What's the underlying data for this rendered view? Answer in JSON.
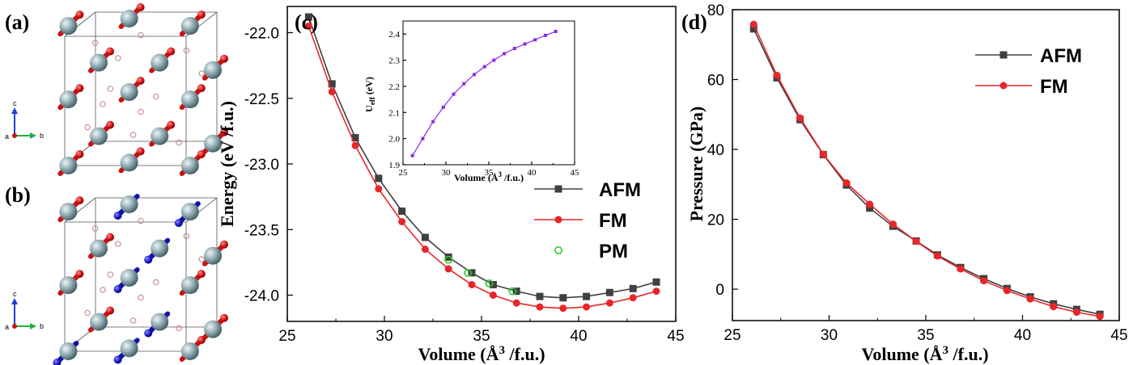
{
  "panels": {
    "a": "(a)",
    "b": "(b)",
    "c": "(c)",
    "d": "(d)"
  },
  "crystal_axes": {
    "a": "a",
    "b": "b",
    "c": "c"
  },
  "colors": {
    "afm": "#404040",
    "fm": "#e8262a",
    "pm": "#22cc22",
    "ueff": "#8a2be2",
    "atom_big": "#8fa9b0",
    "spin_up": "#cc1010",
    "spin_down": "#1010aa",
    "small_atom": "#c89090"
  },
  "chart_data": [
    {
      "id": "energy",
      "type": "line",
      "xlabel": "Volume (Å3 /f.u.)",
      "ylabel": "Energy (eV /f.u.)",
      "xlim": [
        25,
        45
      ],
      "ylim": [
        -24.2,
        -21.8
      ],
      "xticks": [
        25,
        30,
        35,
        40,
        45
      ],
      "yticks": [
        -22.0,
        -22.5,
        -23.0,
        -23.5,
        -24.0
      ],
      "yticklabels": [
        "-22.0",
        "-22.5",
        "-23.0",
        "-23.5",
        "-24.0"
      ],
      "legend_position": "right",
      "series": [
        {
          "name": "AFM",
          "marker": "square",
          "x": [
            26.1,
            27.3,
            28.5,
            29.7,
            30.9,
            32.1,
            33.3,
            34.5,
            35.6,
            36.8,
            38.0,
            39.2,
            40.4,
            41.6,
            42.8,
            44.0
          ],
          "y": [
            -21.88,
            -22.39,
            -22.8,
            -23.11,
            -23.36,
            -23.56,
            -23.71,
            -23.83,
            -23.92,
            -23.97,
            -24.01,
            -24.02,
            -24.01,
            -23.98,
            -23.95,
            -23.9
          ]
        },
        {
          "name": "FM",
          "marker": "circle",
          "x": [
            26.1,
            27.3,
            28.5,
            29.7,
            30.9,
            32.1,
            33.3,
            34.5,
            35.6,
            36.8,
            38.0,
            39.2,
            40.4,
            41.6,
            42.8,
            44.0
          ],
          "y": [
            -21.95,
            -22.45,
            -22.86,
            -23.19,
            -23.44,
            -23.65,
            -23.8,
            -23.92,
            -24.0,
            -24.06,
            -24.09,
            -24.1,
            -24.09,
            -24.06,
            -24.02,
            -23.97
          ]
        },
        {
          "name": "PM",
          "marker": "open-hexagon",
          "x": [
            33.3,
            34.3,
            35.4,
            36.6
          ],
          "y": [
            -23.73,
            -23.83,
            -23.91,
            -23.97
          ]
        }
      ],
      "inset": {
        "type": "line",
        "xlabel": "Volume (Å3 /f.u.)",
        "ylabel": "Ueff (eV)",
        "xlim": [
          25,
          45
        ],
        "ylim": [
          1.9,
          2.45
        ],
        "xticks": [
          25,
          30,
          35,
          40,
          45
        ],
        "yticks": [
          1.9,
          2.0,
          2.1,
          2.2,
          2.3,
          2.4
        ],
        "yticklabels": [
          "1.9",
          "2.0",
          "2.1",
          "2.2",
          "2.3",
          "2.4"
        ],
        "x": [
          26.1,
          27.3,
          28.5,
          29.7,
          30.9,
          32.1,
          33.3,
          34.5,
          35.6,
          36.8,
          38.0,
          39.2,
          40.4,
          41.6,
          42.8
        ],
        "y": [
          1.935,
          2.0,
          2.065,
          2.12,
          2.17,
          2.21,
          2.245,
          2.275,
          2.3,
          2.325,
          2.345,
          2.362,
          2.378,
          2.395,
          2.41
        ]
      }
    },
    {
      "id": "pressure",
      "type": "line",
      "xlabel": "Volume (Å3 /f.u.)",
      "ylabel": "Pressure (GPa)",
      "xlim": [
        25,
        45
      ],
      "ylim": [
        -9,
        80
      ],
      "xticks": [
        25,
        30,
        35,
        40,
        45
      ],
      "yticks": [
        0,
        20,
        40,
        60,
        80
      ],
      "yticklabels": [
        "0",
        "20",
        "40",
        "60",
        "80"
      ],
      "legend_position": "top-right",
      "series": [
        {
          "name": "AFM",
          "marker": "square",
          "x": [
            26.1,
            27.3,
            28.5,
            29.7,
            30.9,
            32.1,
            33.3,
            34.5,
            35.6,
            36.8,
            38.0,
            39.2,
            40.4,
            41.6,
            42.8,
            44.0
          ],
          "y": [
            74.5,
            60.5,
            48.5,
            38.5,
            29.8,
            23.2,
            18.0,
            13.8,
            9.8,
            6.2,
            3.0,
            0.2,
            -2.2,
            -4.2,
            -5.8,
            -7.2
          ]
        },
        {
          "name": "FM",
          "marker": "circle",
          "x": [
            26.1,
            27.3,
            28.5,
            29.7,
            30.9,
            32.1,
            33.3,
            34.5,
            35.6,
            36.8,
            38.0,
            39.2,
            40.4,
            41.6,
            42.8,
            44.0
          ],
          "y": [
            75.8,
            61.2,
            49.0,
            38.6,
            30.4,
            24.3,
            18.6,
            13.7,
            9.5,
            5.8,
            2.4,
            -0.4,
            -2.8,
            -5.0,
            -6.6,
            -7.8
          ]
        }
      ]
    }
  ]
}
